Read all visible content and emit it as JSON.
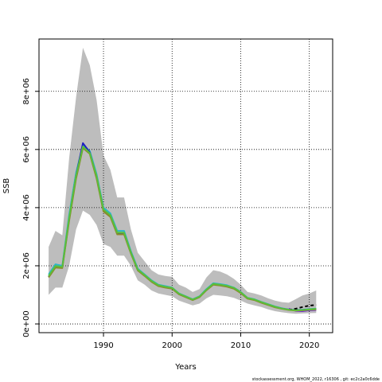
{
  "chart_data": {
    "type": "line",
    "title": "",
    "xlabel": "Years",
    "ylabel": "SSB",
    "xlim": [
      1980.6,
      2023.4
    ],
    "ylim": [
      -300000,
      9800000
    ],
    "grid": true,
    "x_ticks": [
      1990,
      2000,
      2010,
      2020
    ],
    "x_tick_labels": [
      "1990",
      "2000",
      "2010",
      "2020"
    ],
    "y_ticks": [
      0,
      2000000,
      4000000,
      6000000,
      8000000
    ],
    "y_tick_labels": [
      "0e+00",
      "2e+06",
      "4e+06",
      "6e+06",
      "8e+06"
    ],
    "x": [
      1982,
      1983,
      1984,
      1985,
      1986,
      1987,
      1988,
      1989,
      1990,
      1991,
      1992,
      1993,
      1994,
      1995,
      1996,
      1997,
      1998,
      1999,
      2000,
      2001,
      2002,
      2003,
      2004,
      2005,
      2006,
      2007,
      2008,
      2009,
      2010,
      2011,
      2012,
      2013,
      2014,
      2015,
      2016,
      2017,
      2018,
      2019,
      2020,
      2021
    ],
    "band": {
      "upper": [
        2650000,
        3200000,
        3050000,
        5700000,
        7800000,
        9500000,
        8900000,
        7700000,
        5800000,
        5300000,
        4350000,
        4350000,
        3250000,
        2450000,
        2150000,
        1850000,
        1700000,
        1650000,
        1620000,
        1350000,
        1250000,
        1100000,
        1200000,
        1600000,
        1850000,
        1800000,
        1700000,
        1550000,
        1350000,
        1100000,
        1050000,
        980000,
        880000,
        800000,
        750000,
        730000,
        850000,
        980000,
        1050000,
        1150000
      ],
      "lower": [
        1000000,
        1250000,
        1250000,
        2000000,
        3250000,
        3900000,
        3750000,
        3400000,
        2750000,
        2650000,
        2350000,
        2350000,
        2000000,
        1500000,
        1350000,
        1150000,
        1050000,
        1000000,
        950000,
        800000,
        720000,
        640000,
        700000,
        880000,
        1000000,
        980000,
        950000,
        900000,
        800000,
        700000,
        640000,
        580000,
        500000,
        440000,
        400000,
        370000,
        350000,
        360000,
        370000,
        380000
      ]
    },
    "series": [
      {
        "color": "#2ab7c9",
        "values": [
          1700000,
          2050000,
          2000000,
          3750000,
          5200000,
          6150000,
          5950000,
          5150000,
          4000000,
          3800000,
          3200000,
          3200000,
          2500000,
          1900000,
          1700000,
          1500000,
          1350000,
          1300000,
          1250000,
          1050000,
          950000,
          850000,
          950000,
          1200000,
          1400000,
          1370000,
          1330000,
          1250000,
          1100000,
          900000,
          850000,
          760000,
          680000,
          600000,
          540000,
          500000,
          480000,
          490000,
          510000,
          530000
        ]
      },
      {
        "color": "#1f1fbf",
        "values": [
          1620000,
          1980000,
          1950000,
          3600000,
          5100000,
          6220000,
          5900000,
          5050000,
          3920000,
          3720000,
          3120000,
          3120000,
          2450000,
          1860000,
          1670000,
          1470000,
          1320000,
          1270000,
          1230000,
          1030000,
          930000,
          830000,
          930000,
          1170000,
          1370000,
          1340000,
          1300000,
          1230000,
          1080000,
          880000,
          830000,
          740000,
          660000,
          580000,
          530000,
          490000,
          470000,
          480000,
          500000,
          510000
        ]
      },
      {
        "color": "#7b2bd1",
        "values": [
          null,
          null,
          null,
          null,
          null,
          null,
          null,
          null,
          null,
          null,
          null,
          null,
          null,
          null,
          null,
          null,
          null,
          null,
          null,
          null,
          null,
          null,
          null,
          null,
          null,
          null,
          null,
          null,
          null,
          null,
          null,
          null,
          null,
          null,
          null,
          520000,
          450000,
          440000,
          470000,
          480000
        ]
      },
      {
        "color": "#000000",
        "dashed": true,
        "values": [
          null,
          null,
          null,
          null,
          null,
          null,
          null,
          null,
          null,
          null,
          null,
          null,
          null,
          null,
          null,
          null,
          null,
          null,
          null,
          null,
          null,
          null,
          null,
          null,
          null,
          null,
          null,
          null,
          null,
          null,
          null,
          null,
          null,
          null,
          null,
          480000,
          520000,
          580000,
          630000,
          650000
        ]
      },
      {
        "color": "#8a8a2a",
        "values": [
          1600000,
          1940000,
          1920000,
          3550000,
          5000000,
          6050000,
          5850000,
          5000000,
          3870000,
          3680000,
          3080000,
          3080000,
          2420000,
          1840000,
          1650000,
          1450000,
          1300000,
          1250000,
          1210000,
          1020000,
          920000,
          820000,
          920000,
          1160000,
          1350000,
          1320000,
          1280000,
          1210000,
          1060000,
          870000,
          820000,
          730000,
          650000,
          570000,
          520000,
          480000,
          460000,
          470000,
          490000,
          500000
        ]
      },
      {
        "color": "#5bbf3a",
        "values": [
          1650000,
          1990000,
          1960000,
          3650000,
          5100000,
          6100000,
          5880000,
          5080000,
          3940000,
          3740000,
          3140000,
          3140000,
          2460000,
          1870000,
          1680000,
          1480000,
          1330000,
          1280000,
          1240000,
          1040000,
          940000,
          840000,
          940000,
          1180000,
          1380000,
          1350000,
          1310000,
          1240000,
          1090000,
          890000,
          840000,
          750000,
          670000,
          590000,
          530000,
          490000,
          470000,
          480000,
          500000,
          520000
        ]
      }
    ]
  },
  "footnote": "stockassessment.org, WHOM_2022, r16306 , git: ec2c2a0c6dde"
}
